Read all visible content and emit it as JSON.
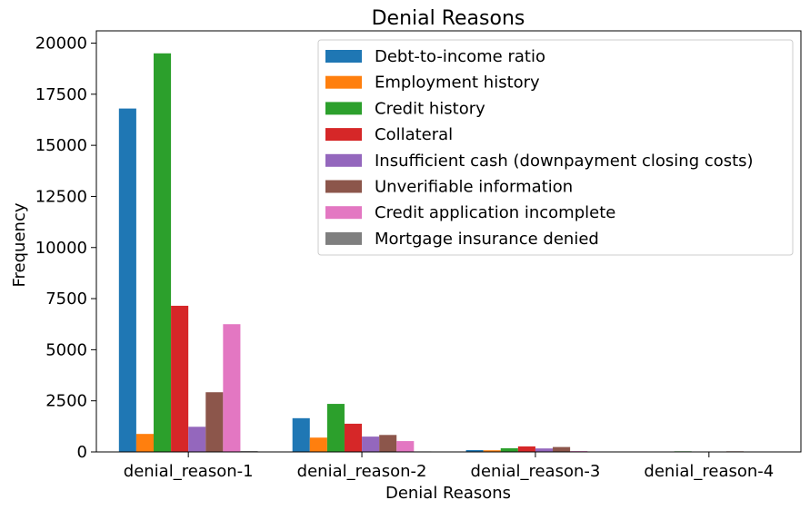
{
  "chart_data": {
    "type": "bar",
    "title": "Denial Reasons",
    "xlabel": "Denial Reasons",
    "ylabel": "Frequency",
    "ylim": [
      0,
      20600
    ],
    "yticks": [
      0,
      2500,
      5000,
      7500,
      10000,
      12500,
      15000,
      17500,
      20000
    ],
    "categories": [
      "denial_reason-1",
      "denial_reason-2",
      "denial_reason-3",
      "denial_reason-4"
    ],
    "grid": false,
    "legend_position": "top-right",
    "series": [
      {
        "name": "Debt-to-income ratio",
        "color": "#1f77b4",
        "values": [
          16800,
          1650,
          90,
          0
        ]
      },
      {
        "name": "Employment history",
        "color": "#ff7f0e",
        "values": [
          880,
          700,
          80,
          0
        ]
      },
      {
        "name": "Credit history",
        "color": "#2ca02c",
        "values": [
          19500,
          2350,
          180,
          30
        ]
      },
      {
        "name": "Collateral",
        "color": "#d62728",
        "values": [
          7150,
          1380,
          270,
          0
        ]
      },
      {
        "name": "Insufficient cash (downpayment closing costs)",
        "color": "#9467bd",
        "values": [
          1230,
          750,
          170,
          0
        ]
      },
      {
        "name": "Unverifiable information",
        "color": "#8c564b",
        "values": [
          2920,
          830,
          240,
          30
        ]
      },
      {
        "name": "Credit application incomplete",
        "color": "#e377c2",
        "values": [
          6250,
          530,
          40,
          0
        ]
      },
      {
        "name": "Mortgage insurance denied",
        "color": "#7f7f7f",
        "values": [
          40,
          25,
          0,
          0
        ]
      }
    ]
  }
}
